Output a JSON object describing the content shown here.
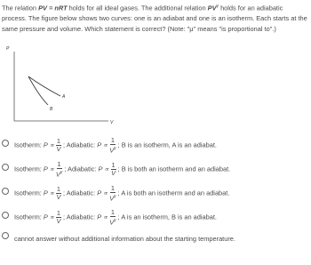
{
  "question": {
    "intro": [
      {
        "text": "The relation "
      },
      {
        "text": "PV = nRT",
        "style": "em"
      },
      {
        "text": " holds for all ideal gases. The additional relation "
      },
      {
        "text": "PV",
        "style": "em"
      },
      {
        "text": "γ",
        "style": "sup"
      },
      {
        "text": " holds for an adiabatic process. The figure below shows two curves: one is an adiabat and one is an isotherm. Each starts at the same pressure and volume. Which statement is correct? (Note: \"μ\" means \"is proportional to\".)"
      }
    ]
  },
  "figure": {
    "y_axis": "P",
    "x_axis": "V",
    "curve_a": "A",
    "curve_b": "B"
  },
  "options": [
    {
      "iso_label": "Isotherm:",
      "iso_rel": "P ∝",
      "iso_num": "1",
      "iso_den": "V",
      "adi_label": "; Adiabatic:",
      "adi_rel": "P ∝",
      "adi_num": "1",
      "adi_den": "V",
      "adi_exp": "γ",
      "conclusion": "; B is an isotherm, A is an adiabat."
    },
    {
      "iso_label": "Isotherm:",
      "iso_rel": "P ∝",
      "iso_num": "1",
      "iso_den": "V",
      "iso_exp": "γ",
      "adi_label": "; Adiabatic:",
      "adi_rel": "P ∝",
      "adi_num": "1",
      "adi_den": "V",
      "conclusion": "; B is both an isotherm and an adiabat."
    },
    {
      "iso_label": "Isotherm:",
      "iso_rel": "P ∝",
      "iso_num": "1",
      "iso_den": "V",
      "adi_label": "; Adiabatic:",
      "adi_rel": "P ∝",
      "adi_num": "1",
      "adi_den": "V",
      "adi_exp": "γ",
      "conclusion": "; A is both an isotherm and an adiabat."
    },
    {
      "iso_label": "Isotherm:",
      "iso_rel": "P ∝",
      "iso_num": "1",
      "iso_den": "V",
      "adi_label": "; Adiabatic:",
      "adi_rel": "P ∝",
      "adi_num": "1",
      "adi_den": "V",
      "adi_exp": "γ",
      "conclusion": "; A is an isotherm, B is an adiabat."
    },
    {
      "text": "cannot answer without additional information about the starting temperature."
    }
  ]
}
